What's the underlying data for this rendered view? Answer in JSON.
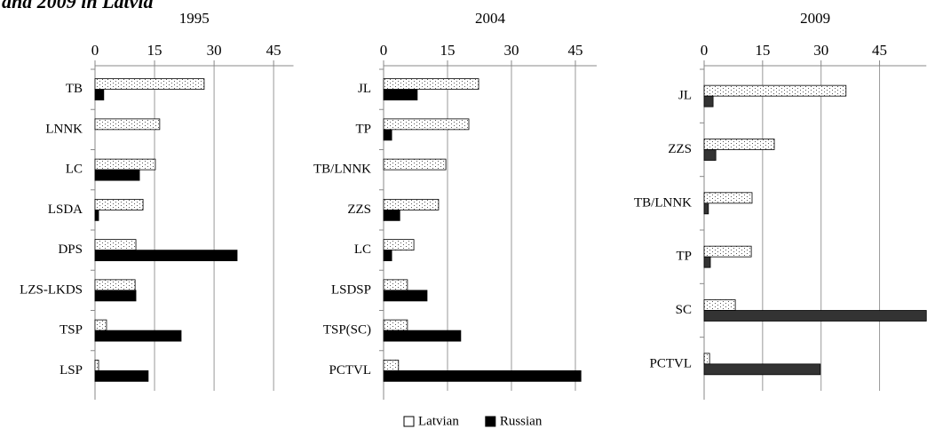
{
  "title": "and 2009 in Latvia",
  "chart_data": [
    {
      "type": "bar",
      "title": "1995",
      "categories": [
        "TB",
        "LNNK",
        "LC",
        "LSDA",
        "DPS",
        "LZS-LKDS",
        "TSP",
        "LSP"
      ],
      "series": [
        {
          "name": "Latvian",
          "color": "#ffffff",
          "pattern": "dots",
          "values": [
            27.5,
            16.3,
            15.2,
            12.1,
            10.3,
            10.1,
            2.9,
            0.9
          ]
        },
        {
          "name": "Russian",
          "color": "#000000",
          "values": [
            2.2,
            0,
            11.2,
            0.9,
            35.8,
            10.3,
            21.7,
            13.4
          ]
        }
      ],
      "xlim": [
        0,
        50
      ],
      "xticks": [
        0,
        15,
        30,
        45
      ],
      "grid": true
    },
    {
      "type": "bar",
      "title": "2004",
      "categories": [
        "JL",
        "TP",
        "TB/LNNK",
        "ZZS",
        "LC",
        "LSDSP",
        "TSP(SC)",
        "PCTVL"
      ],
      "series": [
        {
          "name": "Latvian",
          "color": "#ffffff",
          "pattern": "dots",
          "values": [
            22.3,
            20,
            14.6,
            12.9,
            7.1,
            5.6,
            5.6,
            3.5
          ]
        },
        {
          "name": "Russian",
          "color": "#000000",
          "values": [
            7.9,
            1.9,
            0,
            3.8,
            1.9,
            10.2,
            18.1,
            46.3
          ]
        }
      ],
      "xlim": [
        0,
        50
      ],
      "xticks": [
        0,
        15,
        30,
        45
      ],
      "grid": true
    },
    {
      "type": "bar",
      "title": "2009",
      "categories": [
        "JL",
        "ZZS",
        "TB/LNNK",
        "TP",
        "SC",
        "PCTVL"
      ],
      "series": [
        {
          "name": "Latvian",
          "color": "#ffffff",
          "pattern": "dots",
          "values": [
            36.4,
            18,
            12.3,
            12.1,
            8,
            1.4
          ]
        },
        {
          "name": "Russian",
          "color": "#333333",
          "values": [
            2.3,
            3,
            1.1,
            1.6,
            57,
            29.8
          ]
        }
      ],
      "xlim": [
        0,
        57
      ],
      "xticks": [
        0,
        15,
        30,
        45
      ],
      "grid": true
    }
  ]
}
